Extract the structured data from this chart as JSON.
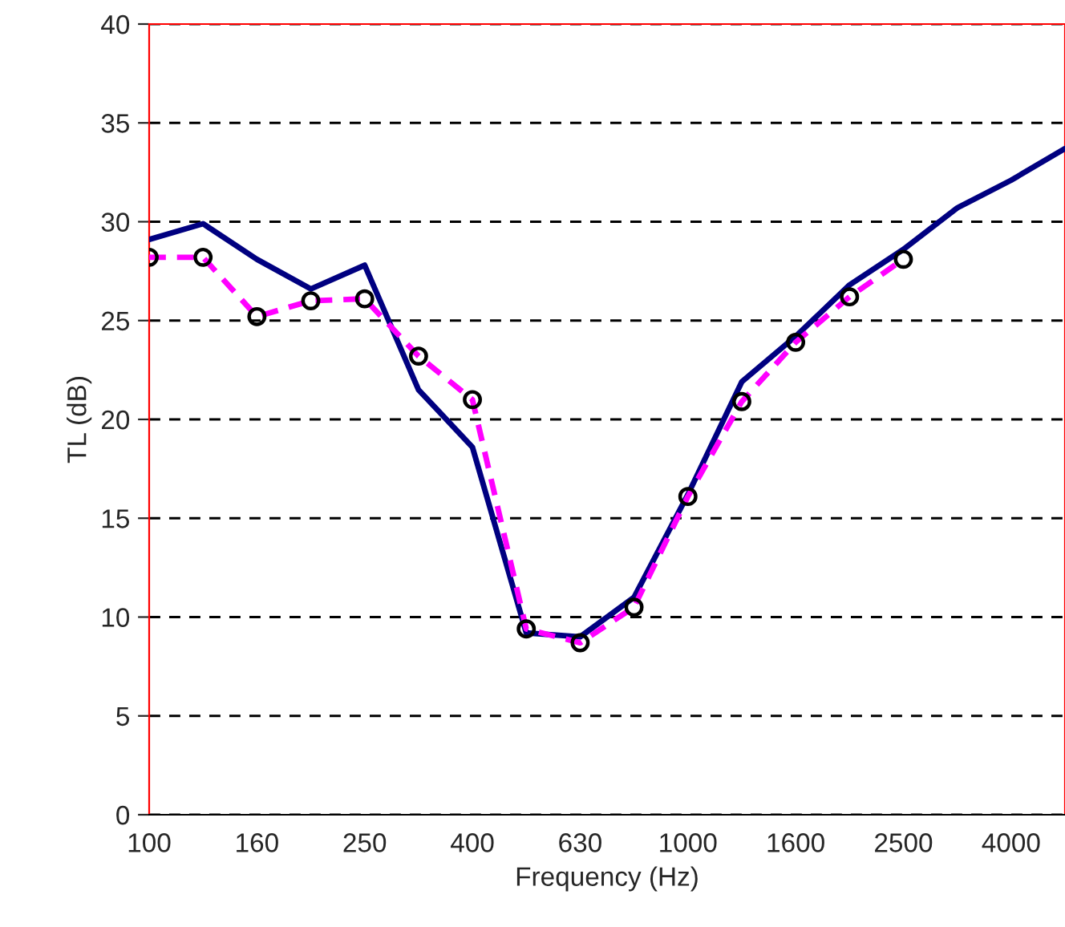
{
  "chart_data": {
    "type": "line",
    "xlabel": "Frequency (Hz)",
    "ylabel": "TL (dB)",
    "categories": [
      "100",
      null,
      "160",
      null,
      "250",
      null,
      "400",
      null,
      "630",
      null,
      "1000",
      null,
      "1600",
      null,
      "2500",
      null,
      "4000",
      null
    ],
    "series": [
      {
        "color": "#000080",
        "line_style": "solid",
        "marker": "none",
        "values": [
          29.1,
          29.9,
          28.1,
          26.6,
          27.8,
          21.5,
          18.6,
          9.2,
          9.0,
          11.0,
          16.2,
          21.9,
          24.2,
          26.8,
          28.6,
          30.7,
          32.1,
          33.7
        ]
      },
      {
        "color": "#ff00ff",
        "line_style": "dashed",
        "marker": "circle",
        "values": [
          28.2,
          28.2,
          25.2,
          26.0,
          26.1,
          23.2,
          21.0,
          9.4,
          8.7,
          10.5,
          16.1,
          20.9,
          23.9,
          26.2,
          28.1,
          null,
          null,
          null
        ]
      }
    ],
    "ylim": [
      0,
      40
    ],
    "yticks": [
      0,
      5,
      10,
      15,
      20,
      25,
      30,
      35,
      40
    ],
    "grid": "y",
    "legend": false
  }
}
